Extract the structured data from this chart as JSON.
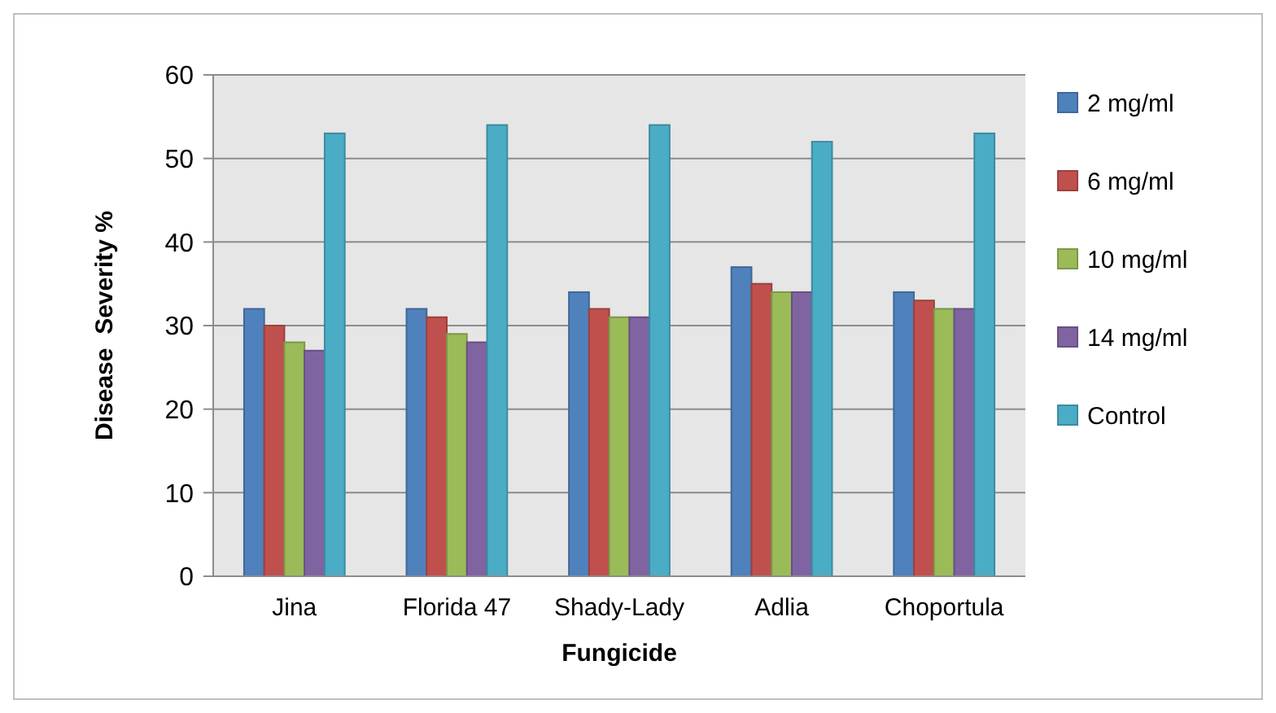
{
  "chart_data": {
    "type": "bar",
    "xlabel": "Fungicide",
    "ylabel": "Disease  Severity %",
    "categories": [
      "Jina",
      "Florida 47",
      "Shady-Lady",
      "Adlia",
      "Choportula"
    ],
    "series": [
      {
        "name": "2 mg/ml",
        "color": "#4f81bd",
        "values": [
          32,
          32,
          34,
          37,
          34
        ]
      },
      {
        "name": "6 mg/ml",
        "color": "#c0504d",
        "values": [
          30,
          31,
          32,
          35,
          33
        ]
      },
      {
        "name": "10 mg/ml",
        "color": "#9bbb59",
        "values": [
          28,
          29,
          31,
          34,
          32
        ]
      },
      {
        "name": "14 mg/ml",
        "color": "#8064a2",
        "values": [
          27,
          28,
          31,
          34,
          32
        ]
      },
      {
        "name": "Control",
        "color": "#4bacc6",
        "values": [
          53,
          54,
          54,
          52,
          53
        ]
      }
    ],
    "ylim": [
      0,
      60
    ],
    "yticks": [
      0,
      10,
      20,
      30,
      40,
      50,
      60
    ],
    "grid": "y",
    "legend": "right"
  }
}
